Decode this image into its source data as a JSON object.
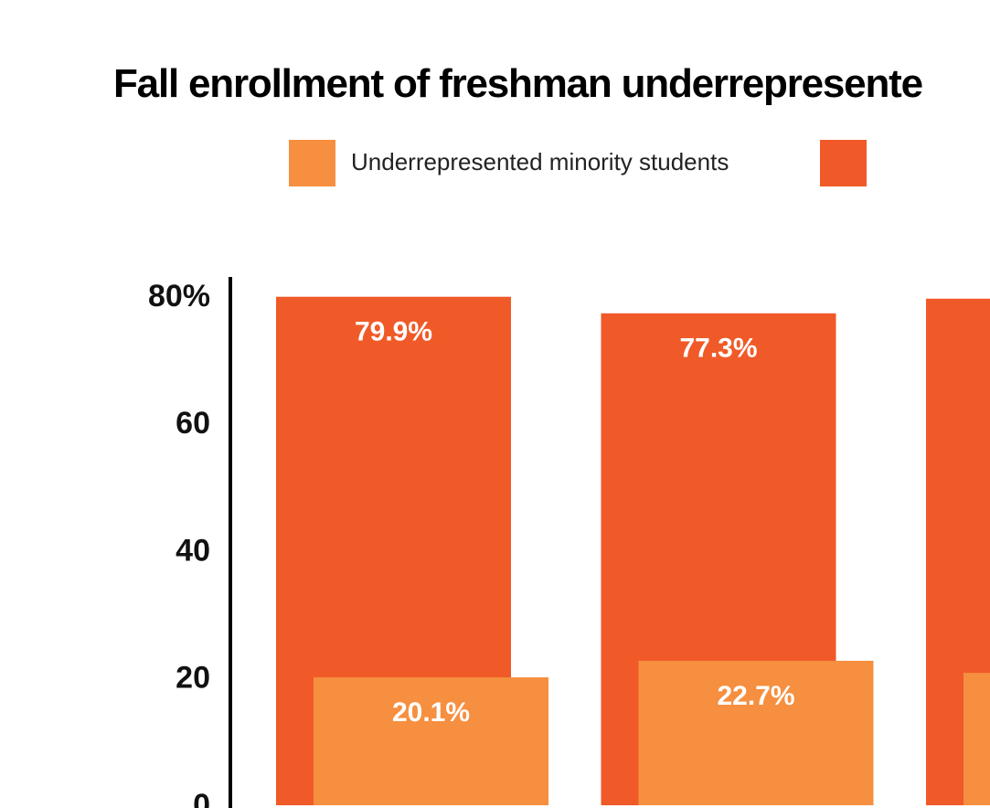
{
  "chart_data": {
    "type": "bar",
    "title": "Fall enrollment of freshman underrepresente",
    "categories": [
      null,
      null,
      null
    ],
    "series": [
      {
        "name": "Underrepresented minority students",
        "color": "#f68f3f",
        "values": [
          20.1,
          22.7,
          20.8
        ],
        "value_labels": [
          "20.1%",
          "22.7%",
          null
        ]
      },
      {
        "name": null,
        "color": "#f05a28",
        "values": [
          79.9,
          77.3,
          79.6
        ],
        "value_labels": [
          "79.9%",
          "77.3%",
          null
        ]
      }
    ],
    "ylim": [
      0,
      80
    ],
    "yticks": [
      0,
      20,
      40,
      60,
      {
        "value": 80,
        "label": "80%"
      }
    ],
    "grid": false
  }
}
